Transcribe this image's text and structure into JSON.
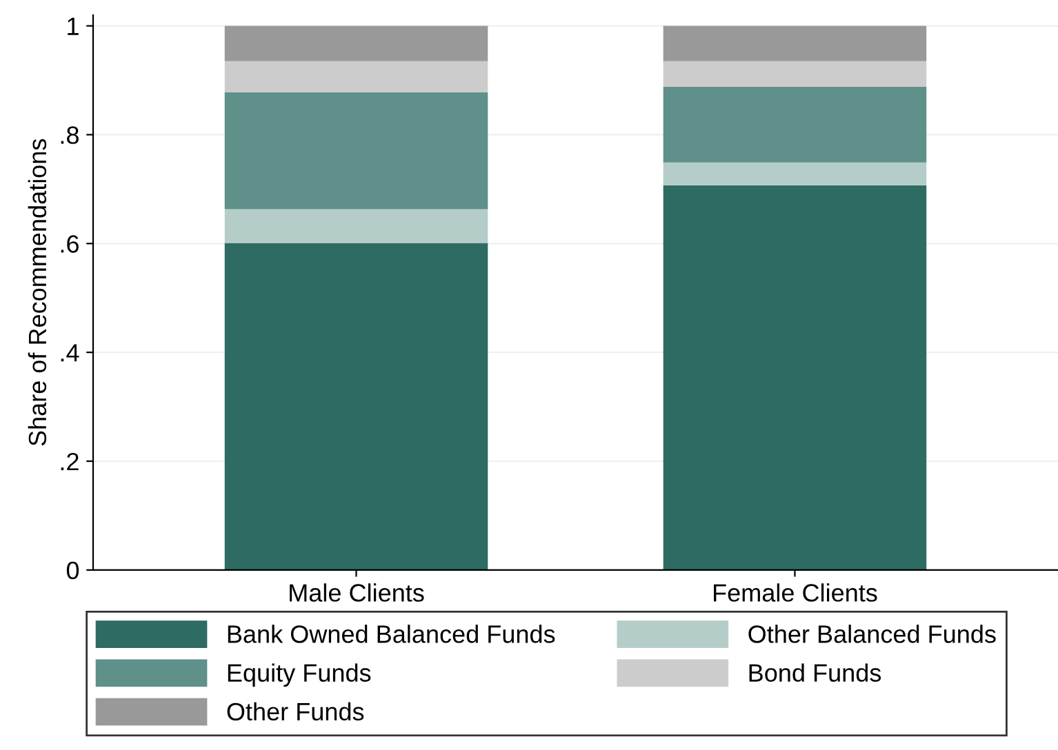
{
  "chart_data": {
    "type": "bar",
    "stacked": true,
    "ylabel": "Share of Recommendations",
    "categories": [
      "Male Clients",
      "Female Clients"
    ],
    "series": [
      {
        "name": "Bank Owned Balanced Funds",
        "color": "#2e6b63",
        "values": [
          0.601,
          0.707
        ]
      },
      {
        "name": "Other Balanced Funds",
        "color": "#b5cdc8",
        "values": [
          0.062,
          0.042
        ]
      },
      {
        "name": "Equity Funds",
        "color": "#5f9089",
        "values": [
          0.215,
          0.139
        ]
      },
      {
        "name": "Bond Funds",
        "color": "#cccccc",
        "values": [
          0.057,
          0.047
        ]
      },
      {
        "name": "Other Funds",
        "color": "#999999",
        "values": [
          0.065,
          0.065
        ]
      }
    ],
    "ylim": [
      0,
      1.02
    ],
    "yticks": [
      0,
      {
        "value": 0.2,
        "label": ".2"
      },
      {
        "value": 0.4,
        "label": ".4"
      },
      {
        "value": 0.6,
        "label": ".6"
      },
      {
        "value": 0.8,
        "label": ".8"
      },
      1
    ],
    "grid": "y",
    "legend": "bottom"
  }
}
